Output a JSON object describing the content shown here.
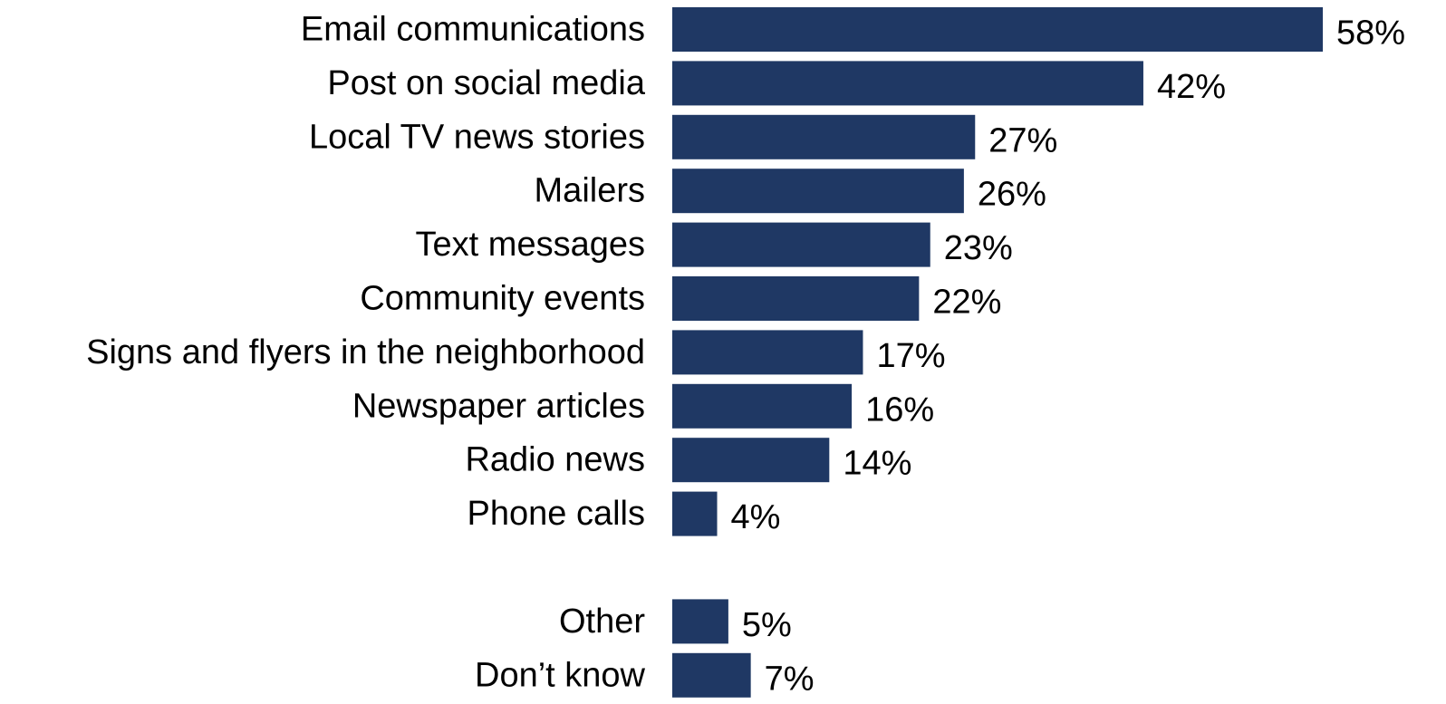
{
  "chart_data": {
    "type": "bar",
    "orientation": "horizontal",
    "title": "",
    "xlabel": "",
    "ylabel": "",
    "grid": false,
    "value_suffix": "%",
    "bar_color": "#1f3864",
    "categories": [
      "Email communications",
      "Post on social media",
      "Local TV news stories",
      "Mailers",
      "Text messages",
      "Community events",
      "Signs and flyers in the neighborhood",
      "Newspaper articles",
      "Radio news",
      "Phone calls",
      "Other",
      "Don’t know"
    ],
    "values": [
      58,
      42,
      27,
      26,
      23,
      22,
      17,
      16,
      14,
      4,
      5,
      7
    ],
    "value_labels": [
      "58%",
      "42%",
      "27%",
      "26%",
      "23%",
      "22%",
      "17%",
      "16%",
      "14%",
      "4%",
      "5%",
      "7%"
    ],
    "groups": [
      {
        "start": 0,
        "count": 10
      },
      {
        "start": 10,
        "count": 2
      }
    ]
  }
}
